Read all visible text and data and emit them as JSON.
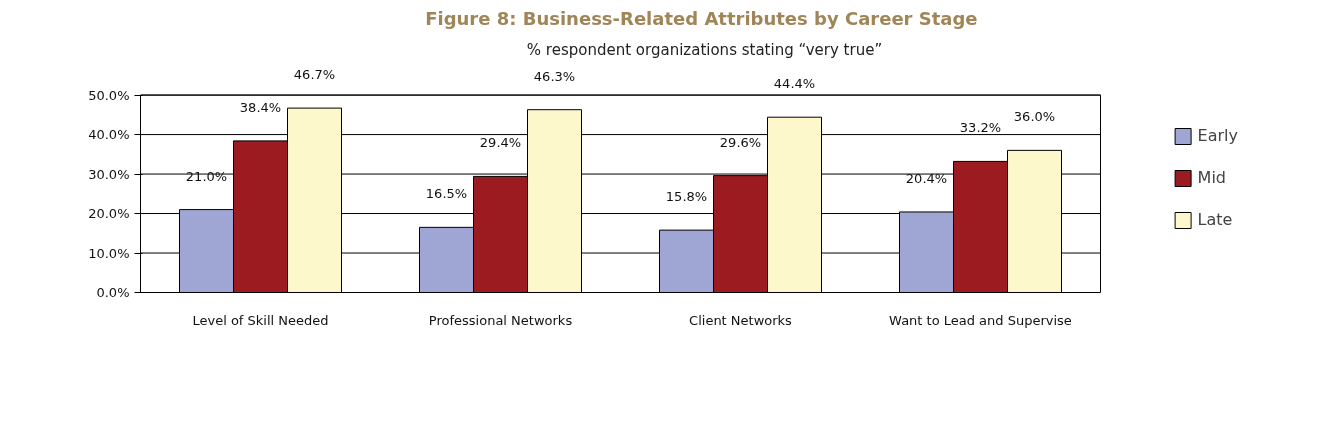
{
  "chart_data": {
    "type": "bar",
    "title": "Figure 8:  Business-Related Attributes by Career Stage",
    "subtitle": "% respondent organizations stating “very true”",
    "categories": [
      "Level of Skill Needed",
      "Professional Networks",
      "Client Networks",
      "Want to Lead and Supervise"
    ],
    "series": [
      {
        "name": "Early",
        "color": "#a0a6d4",
        "values": [
          21.0,
          16.5,
          15.8,
          20.4
        ],
        "value_labels": [
          "21.0%",
          "16.5%",
          "15.8%",
          "20.4%"
        ]
      },
      {
        "name": "Mid",
        "color": "#9b1b20",
        "values": [
          38.4,
          29.4,
          29.6,
          33.2
        ],
        "value_labels": [
          "38.4%",
          "29.4%",
          "29.6%",
          "33.2%"
        ]
      },
      {
        "name": "Late",
        "color": "#fdf8cc",
        "values": [
          46.7,
          46.3,
          44.4,
          36.0
        ],
        "value_labels": [
          "46.7%",
          "46.3%",
          "44.4%",
          "36.0%"
        ]
      }
    ],
    "ylim": [
      0,
      50
    ],
    "yticks": [
      {
        "value": 0,
        "label": "0.0%"
      },
      {
        "value": 10,
        "label": "10.0%"
      },
      {
        "value": 20,
        "label": "20.0%"
      },
      {
        "value": 30,
        "label": "30.0%"
      },
      {
        "value": 40,
        "label": "40.0%"
      },
      {
        "value": 50,
        "label": "50.0%"
      }
    ],
    "grid": "y",
    "legend": "right"
  }
}
